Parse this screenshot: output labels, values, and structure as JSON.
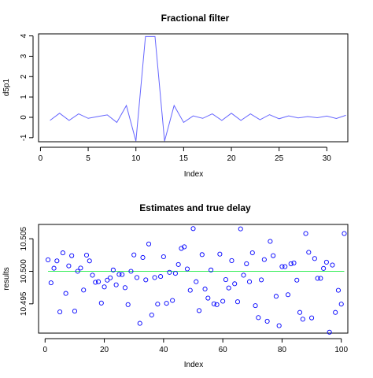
{
  "chart_data": [
    {
      "type": "line",
      "title": "Fractional filter",
      "xlabel": "Index",
      "ylabel": "d5p1",
      "xlim": [
        -0.2,
        32.2
      ],
      "ylim": [
        -1.2,
        4.1
      ],
      "xticks": [
        0,
        5,
        10,
        15,
        20,
        25,
        30
      ],
      "yticks": [
        -1,
        0,
        1,
        2,
        3,
        4
      ],
      "grid": false,
      "series": [
        {
          "color": "#6666ff",
          "x": [
            1,
            2,
            3,
            4,
            5,
            6,
            7,
            8,
            9,
            10,
            11,
            12,
            13,
            14,
            15,
            16,
            17,
            18,
            19,
            20,
            21,
            22,
            23,
            24,
            25,
            26,
            27,
            28,
            29,
            30,
            31,
            32
          ],
          "values": [
            -0.15,
            0.2,
            -0.15,
            0.17,
            -0.05,
            0.04,
            0.12,
            -0.25,
            0.58,
            -1.17,
            3.97,
            3.97,
            -1.17,
            0.58,
            -0.25,
            0.07,
            -0.05,
            0.17,
            -0.15,
            0.2,
            -0.15,
            0.17,
            -0.12,
            0.13,
            -0.07,
            0.07,
            -0.03,
            0.04,
            -0.02,
            0.06,
            -0.06,
            0.1
          ]
        }
      ]
    },
    {
      "type": "scatter",
      "title": "Estimates and true delay",
      "xlabel": "Index",
      "ylabel": "results",
      "xlim": [
        -2.2,
        102.2
      ],
      "ylim": [
        10.4905,
        10.5072
      ],
      "xticks": [
        0,
        20,
        40,
        60,
        80,
        100
      ],
      "yticks": [
        10.495,
        10.5,
        10.505
      ],
      "ytick_labels": [
        "10.495",
        "10.500",
        "10.505"
      ],
      "grid": false,
      "reference_line": {
        "y": 10.5,
        "color": "#33ee55"
      },
      "series": [
        {
          "color": "#0000ff",
          "marker": "open-circle",
          "values": [
            10.50176,
            10.49823,
            10.50047,
            10.5016,
            10.49376,
            10.50283,
            10.4966,
            10.50083,
            10.5024,
            10.49388,
            10.5,
            10.5005,
            10.49712,
            10.50248,
            10.5016,
            10.4994,
            10.49831,
            10.4984,
            10.49512,
            10.4976,
            10.49864,
            10.499,
            10.5002,
            10.49792,
            10.49952,
            10.4995,
            10.49748,
            10.49488,
            10.5,
            10.50252,
            10.49904,
            10.492,
            10.50212,
            10.49868,
            10.5042,
            10.49328,
            10.49904,
            10.49496,
            10.4992,
            10.50224,
            10.49508,
            10.49984,
            10.49552,
            10.49968,
            10.50104,
            10.50352,
            10.50376,
            10.50036,
            10.49708,
            10.50656,
            10.4984,
            10.49396,
            10.50256,
            10.49728,
            10.49588,
            10.5002,
            10.495,
            10.49488,
            10.50264,
            10.4954,
            10.49872,
            10.49744,
            10.50164,
            10.49808,
            10.49532,
            10.50652,
            10.4994,
            10.50116,
            10.4984,
            10.50284,
            10.49472,
            10.49288,
            10.49868,
            10.5018,
            10.49232,
            10.5046,
            10.5024,
            10.49616,
            10.49164,
            10.50072,
            10.50072,
            10.4964,
            10.50116,
            10.50128,
            10.49864,
            10.49368,
            10.49264,
            10.5058,
            10.50292,
            10.49284,
            10.50196,
            10.49892,
            10.49892,
            10.50044,
            10.5014,
            10.49064,
            10.50096,
            10.49368,
            10.49708,
            10.49496,
            10.5058
          ]
        }
      ]
    }
  ]
}
